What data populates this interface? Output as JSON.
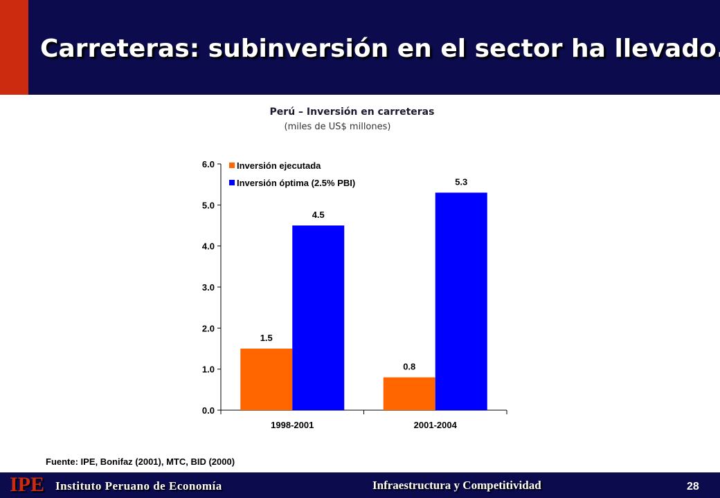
{
  "slide": {
    "title": "Carreteras: subinversión en el sector ha llevado...",
    "source": "Fuente: IPE, Bonifaz (2001), MTC, BID (2000)",
    "footer_logo": "IPE",
    "footer_institution": "Instituto Peruano de Economía",
    "footer_center": "Infraestructura y Competitividad",
    "page_number": "28"
  },
  "colors": {
    "header_bg": "#0b0b4d",
    "accent": "#cc2b0f",
    "series_orange": "#ff6600",
    "series_blue": "#0000ff"
  },
  "chart_data": {
    "type": "bar",
    "title": "Perú – Inversión en carreteras",
    "subtitle": "(miles de US$ millones)",
    "categories": [
      "1998-2001",
      "2001-2004"
    ],
    "series": [
      {
        "name": "Inversión ejecutada",
        "values": [
          1.5,
          0.8
        ],
        "labels": [
          "1.5",
          "0.8"
        ],
        "color": "#ff6600"
      },
      {
        "name": "Inversión óptima (2.5% PBI)",
        "values": [
          4.5,
          5.3
        ],
        "labels": [
          "4.5",
          "5.3"
        ],
        "color": "#0000ff"
      }
    ],
    "ylim": [
      0,
      6
    ],
    "yticks": [
      "0.0",
      "1.0",
      "2.0",
      "3.0",
      "4.0",
      "5.0",
      "6.0"
    ],
    "legend": "top-left",
    "grid": false
  }
}
